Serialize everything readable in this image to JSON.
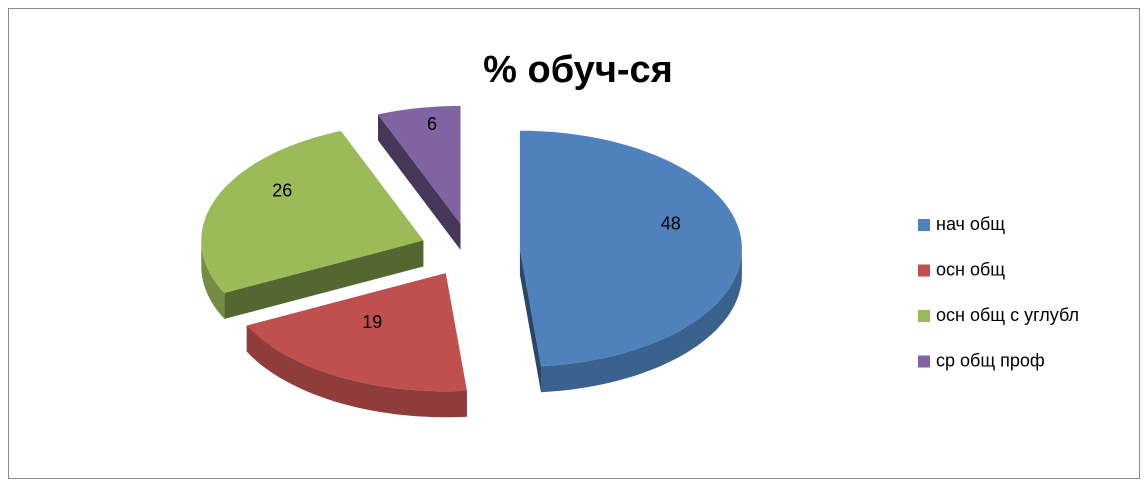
{
  "chart_data": {
    "type": "pie",
    "title": "% обуч-ся",
    "categories": [
      "нач общ",
      "осн общ",
      "осн общ  с углубл",
      "ср общ проф"
    ],
    "values": [
      48,
      19,
      26,
      6
    ],
    "colors": [
      "#4f81bd",
      "#c0504d",
      "#9bbb59",
      "#8064a2"
    ],
    "legend": "right",
    "exploded": true,
    "three_d": true
  }
}
